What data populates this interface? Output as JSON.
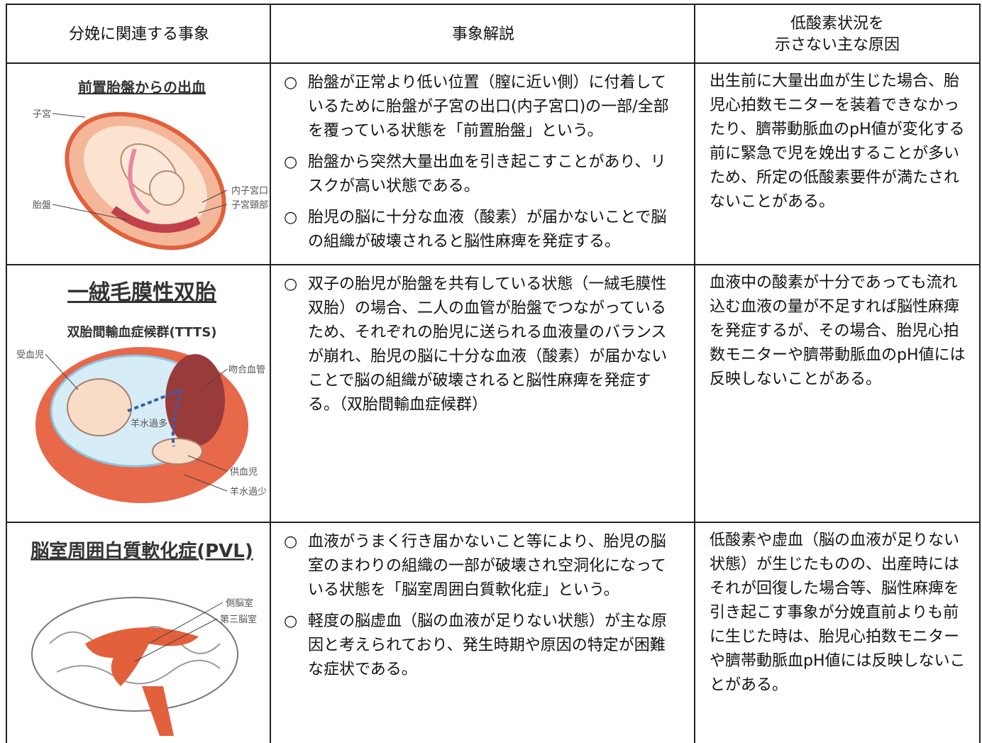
{
  "table": {
    "headers": [
      "分娩に関連する事象",
      "事象解説",
      [
        "低酸素状況を",
        "示さない主な原因"
      ]
    ],
    "bullet_marker": "○",
    "rows": [
      {
        "illustration": {
          "title": "前置胎盤からの出血",
          "labels": [
            "子宮",
            "内子宮口",
            "子宮頸部",
            "胎盤"
          ]
        },
        "bullets": [
          "胎盤が正常より低い位置（膣に近い側）に付着しているために胎盤が子宮の出口(内子宮口)の一部/全部を覆っている状態を「前置胎盤」という。",
          "胎盤から突然大量出血を引き起こすことがあり、リスクが高い状態である。",
          "胎児の脳に十分な血液（酸素）が届かないことで脳の組織が破壊されると脳性麻痺を発症する。"
        ],
        "cause": "出生前に大量出血が生じた場合、胎児心拍数モニターを装着できなかったり、臍帯動脈血のpH値が変化する前に緊急で児を娩出することが多いため、所定の低酸素要件が満たされないことがある。"
      },
      {
        "illustration": {
          "title": "一絨毛膜性双胎",
          "subtitle": "双胎間輸血症候群(TTTS)",
          "labels": [
            "受血児",
            "吻合血管",
            "羊水過多",
            "供血児",
            "羊水過少"
          ]
        },
        "bullets": [
          "双子の胎児が胎盤を共有している状態（一絨毛膜性双胎）の場合、二人の血管が胎盤でつながっているため、それぞれの胎児に送られる血液量のバランスが崩れ、胎児の脳に十分な血液（酸素）が届かないことで脳の組織が破壊されると脳性麻痺を発症する。（双胎間輸血症候群）"
        ],
        "cause": "血液中の酸素が十分であっても流れ込む血液の量が不足すれば脳性麻痺を発症するが、その場合、胎児心拍数モニターや臍帯動脈血のpH値には反映しないことがある。"
      },
      {
        "illustration": {
          "title": "脳室周囲白質軟化症(PVL)",
          "labels": [
            "側脳室",
            "第三脳室"
          ]
        },
        "bullets": [
          "血液がうまく行き届かないこと等により、胎児の脳室のまわりの組織の一部が破壊され空洞化になっている状態を「脳室周囲白質軟化症」という。",
          "軽度の脳虚血（脳の血液が足りない状態）が主な原因と考えられており、発生時期や原因の特定が困難な症状である。"
        ],
        "cause": "低酸素や虚血（脳の血液が足りない状態）が生じたものの、出産時にはそれが回復した場合等、脳性麻痺を引き起こす事象が分娩直前よりも前に生じた時は、胎児心拍数モニターや臍帯動脈血pH値には反映しないことがある。"
      }
    ]
  }
}
